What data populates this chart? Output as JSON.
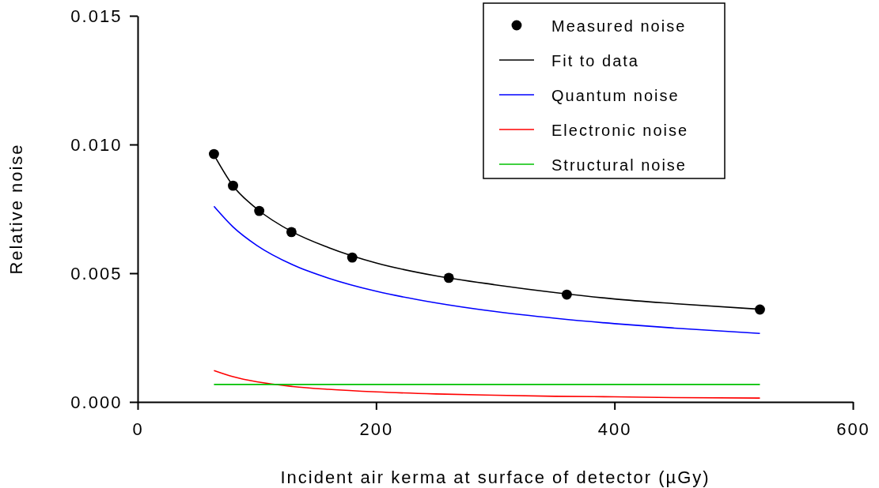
{
  "chart_data": {
    "type": "line",
    "xlabel": "Incident air kerma at surface of detector (µGy)",
    "ylabel": "Relative noise",
    "xlim": [
      0,
      600
    ],
    "xticks": [
      0,
      200,
      400,
      600
    ],
    "ylim": [
      0,
      0.015
    ],
    "yticks": [
      {
        "value": 0,
        "label": "0.000"
      },
      {
        "value": 0.005,
        "label": "0.005"
      },
      {
        "value": 0.01,
        "label": "0.010"
      },
      {
        "value": 0.015,
        "label": "0.015"
      }
    ],
    "grid": false,
    "legend": "top right",
    "series": [
      {
        "name": "Measured noise",
        "type": "scatter",
        "marker": "circle",
        "color": "#000000",
        "x": [
          64,
          80,
          102,
          129,
          180,
          261,
          360,
          522
        ],
        "values": [
          0.00963,
          0.0084,
          0.00742,
          0.0066,
          0.00561,
          0.00482,
          0.00417,
          0.00359
        ]
      },
      {
        "name": "Fit to data",
        "marker": "none",
        "color": "#000000",
        "x": [
          64,
          80,
          100,
          130,
          160,
          200,
          250,
          300,
          350,
          400,
          450,
          522
        ],
        "values": [
          0.0096,
          0.0084,
          0.0075,
          0.0066,
          0.006,
          0.0054,
          0.0049,
          0.00455,
          0.00425,
          0.004,
          0.00382,
          0.0036
        ]
      },
      {
        "name": "Quantum noise",
        "marker": "none",
        "color": "#0000ff",
        "x": [
          64,
          80,
          100,
          130,
          160,
          200,
          250,
          300,
          350,
          400,
          450,
          522
        ],
        "values": [
          0.0076,
          0.0068,
          0.00608,
          0.00533,
          0.00481,
          0.0043,
          0.00385,
          0.00351,
          0.00325,
          0.00304,
          0.00287,
          0.00266
        ]
      },
      {
        "name": "Electronic noise",
        "marker": "none",
        "color": "#ff0000",
        "x": [
          64,
          80,
          100,
          130,
          160,
          200,
          250,
          300,
          350,
          400,
          450,
          522
        ],
        "values": [
          0.00122,
          0.00098,
          0.00078,
          0.0006,
          0.00049,
          0.00039,
          0.00031,
          0.00026,
          0.00022,
          0.0002,
          0.00017,
          0.00015
        ]
      },
      {
        "name": "Structural noise",
        "marker": "none",
        "color": "#00c000",
        "x": [
          64,
          522
        ],
        "values": [
          0.00068,
          0.00068
        ]
      }
    ]
  }
}
